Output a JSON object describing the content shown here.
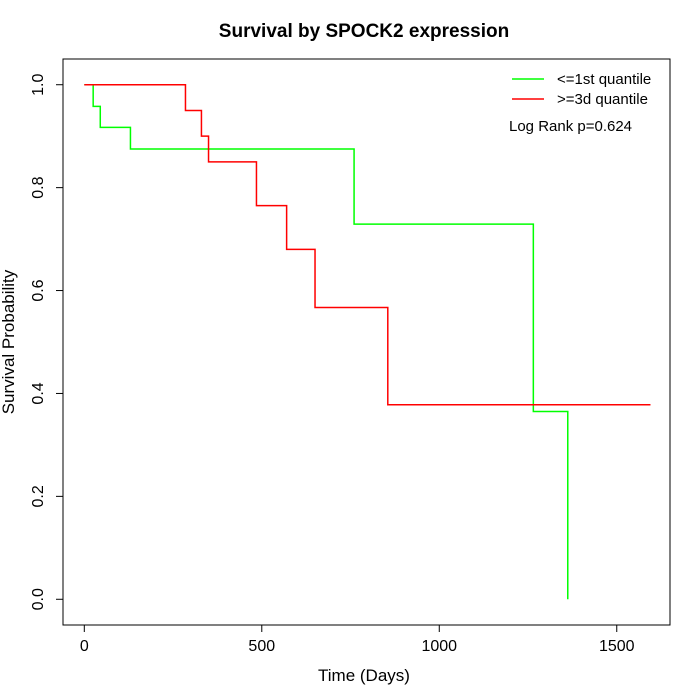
{
  "chart_data": {
    "type": "line",
    "title": "Survival by SPOCK2 expression",
    "xlabel": "Time (Days)",
    "ylabel": "Survival Probability",
    "xlim": [
      -60,
      1650
    ],
    "ylim": [
      -0.05,
      1.05
    ],
    "x_ticks": [
      0,
      500,
      1000,
      1500
    ],
    "x_tick_labels": [
      "0",
      "500",
      "1000",
      "1500"
    ],
    "y_ticks": [
      0.0,
      0.2,
      0.4,
      0.6,
      0.8,
      1.0
    ],
    "y_tick_labels": [
      "0.0",
      "0.2",
      "0.4",
      "0.6",
      "0.8",
      "1.0"
    ],
    "grid": false,
    "legend_position": "top-right",
    "annotation": "Log Rank p=0.624",
    "series": [
      {
        "name": "<=1st quantile",
        "color": "#00ff00",
        "step": true,
        "x": [
          0,
          25,
          45,
          130,
          760,
          1265,
          1362,
          1362
        ],
        "y": [
          1.0,
          0.958,
          0.917,
          0.875,
          0.729,
          0.365,
          0.365,
          0.0
        ]
      },
      {
        "name": ">=3d quantile",
        "color": "#ff0000",
        "step": true,
        "x": [
          0,
          285,
          330,
          350,
          485,
          570,
          650,
          855,
          1595
        ],
        "y": [
          1.0,
          0.95,
          0.9,
          0.85,
          0.765,
          0.68,
          0.567,
          0.378,
          0.378
        ]
      }
    ]
  }
}
